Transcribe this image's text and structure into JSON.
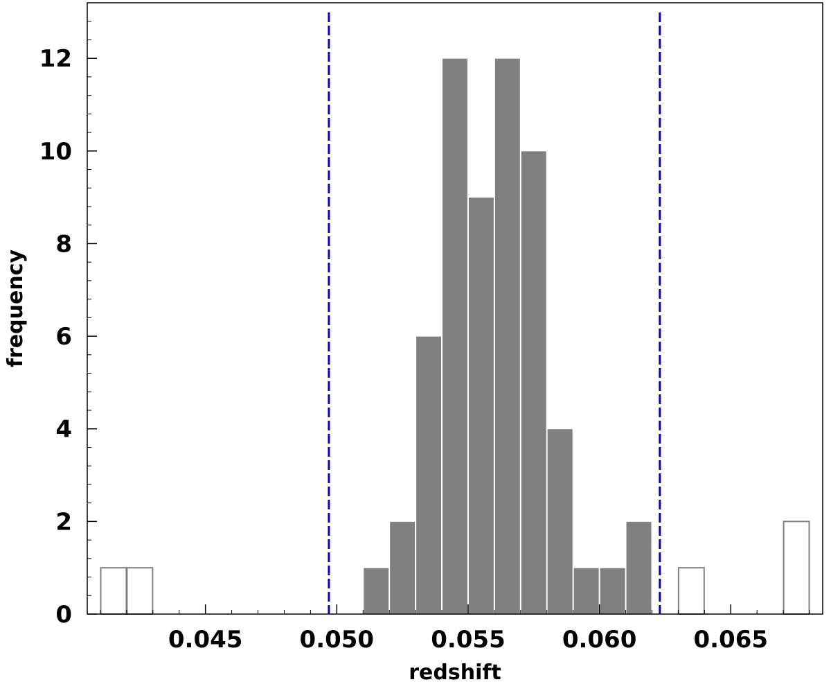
{
  "chart_data": {
    "type": "bar",
    "title": "",
    "xlabel": "redshift",
    "ylabel": "frequency",
    "xlim": [
      0.0405,
      0.0685
    ],
    "ylim": [
      0,
      13.2
    ],
    "x_ticks": [
      0.045,
      0.05,
      0.055,
      0.06,
      0.065
    ],
    "x_tick_labels": [
      "0.045",
      "0.050",
      "0.055",
      "0.060",
      "0.065"
    ],
    "y_ticks": [
      0,
      2,
      4,
      6,
      8,
      10,
      12
    ],
    "y_tick_labels": [
      "0",
      "2",
      "4",
      "6",
      "8",
      "10",
      "12"
    ],
    "bin_width": 0.001,
    "series": [
      {
        "style": "filled",
        "color": "#808080",
        "bins": [
          {
            "x0": 0.051,
            "count": 1
          },
          {
            "x0": 0.052,
            "count": 2
          },
          {
            "x0": 0.053,
            "count": 6
          },
          {
            "x0": 0.054,
            "count": 12
          },
          {
            "x0": 0.055,
            "count": 9
          },
          {
            "x0": 0.056,
            "count": 12
          },
          {
            "x0": 0.057,
            "count": 10
          },
          {
            "x0": 0.058,
            "count": 4
          },
          {
            "x0": 0.059,
            "count": 1
          },
          {
            "x0": 0.06,
            "count": 1
          },
          {
            "x0": 0.061,
            "count": 2
          }
        ]
      },
      {
        "style": "outline",
        "color": "#808080",
        "bins": [
          {
            "x0": 0.041,
            "count": 1
          },
          {
            "x0": 0.042,
            "count": 1
          },
          {
            "x0": 0.063,
            "count": 1
          },
          {
            "x0": 0.067,
            "count": 2
          }
        ]
      }
    ],
    "reference_lines": [
      {
        "x": 0.0497,
        "color": "#0000cc",
        "style": "dashed"
      },
      {
        "x": 0.0623,
        "color": "#0000cc",
        "style": "dashed"
      }
    ],
    "grid": false
  }
}
